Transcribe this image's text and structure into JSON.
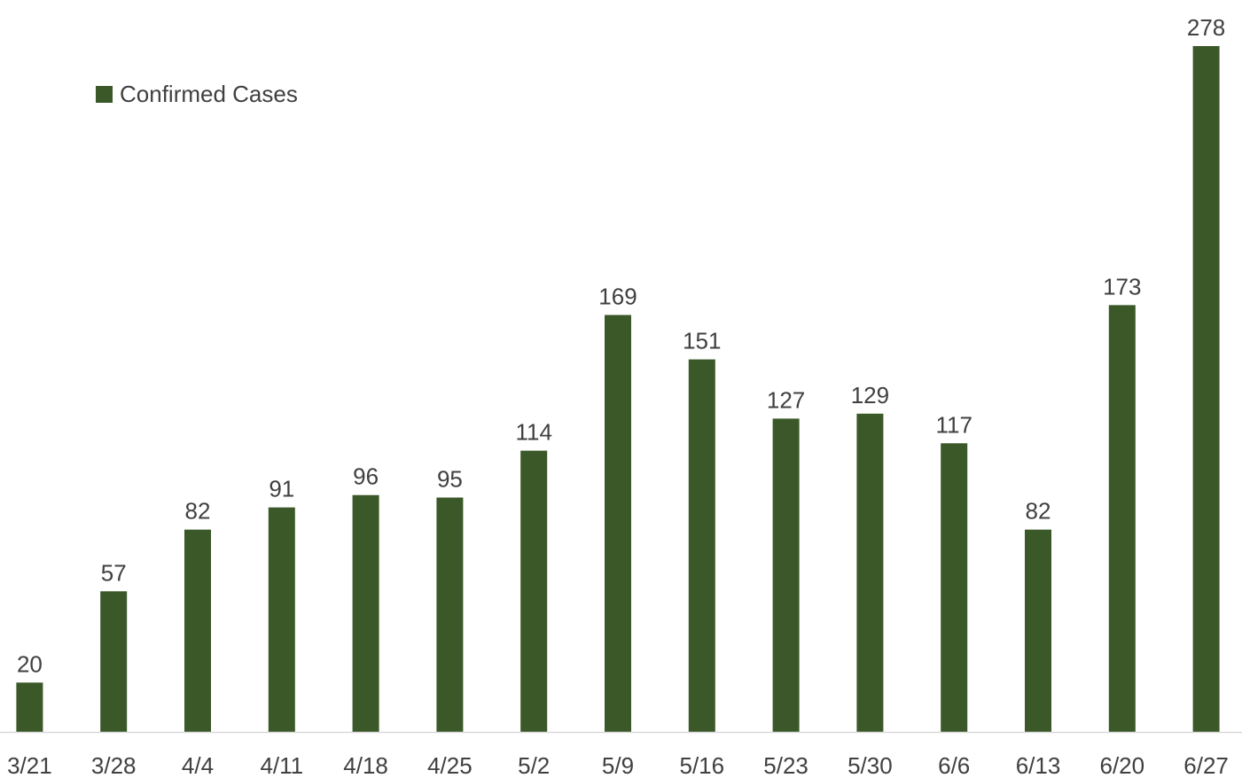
{
  "chart_data": {
    "type": "bar",
    "categories": [
      "3/21",
      "3/28",
      "4/4",
      "4/11",
      "4/18",
      "4/25",
      "5/2",
      "5/9",
      "5/16",
      "5/23",
      "5/30",
      "6/6",
      "6/13",
      "6/20",
      "6/27"
    ],
    "series": [
      {
        "name": "Confirmed Cases",
        "values": [
          20,
          57,
          82,
          91,
          96,
          95,
          114,
          169,
          151,
          127,
          129,
          117,
          82,
          173,
          278
        ],
        "color": "#3b5828"
      }
    ],
    "data_labels": true,
    "legend_position": "top-left",
    "grid": false,
    "ylim": [
      0,
      278
    ],
    "colors": {
      "bar": "#3b5828",
      "text": "#404040",
      "axis": "#d9d9d9"
    }
  }
}
